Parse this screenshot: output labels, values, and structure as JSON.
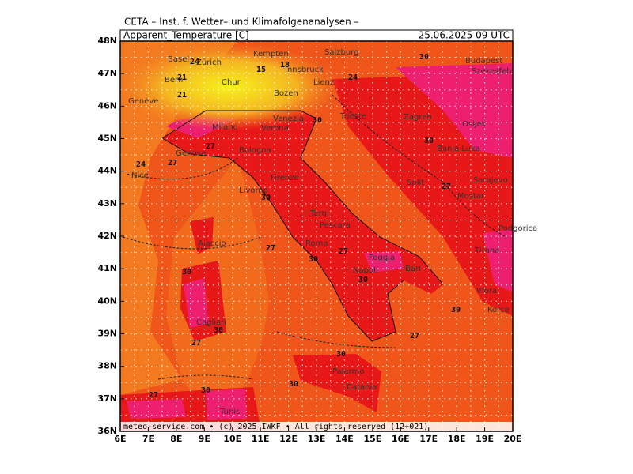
{
  "header": {
    "institute": "CETA – Inst. f. Wetter– und Klimafolgenanalysen –",
    "parameter": "Apparent_Temperature [C]",
    "valid_time": "25.06.2025 09 UTC"
  },
  "footer": "meteo-service.com • (c) 2025 IWKF • All rights reserved (12+021)",
  "lat_labels": [
    "48N",
    "47N",
    "46N",
    "45N",
    "44N",
    "43N",
    "42N",
    "41N",
    "40N",
    "39N",
    "38N",
    "37N",
    "36N"
  ],
  "lon_labels": [
    "6E",
    "7E",
    "8E",
    "9E",
    "10E",
    "11E",
    "12E",
    "13E",
    "14E",
    "15E",
    "16E",
    "17E",
    "18E",
    "19E",
    "20E"
  ],
  "cities": [
    "Basel",
    "Zürich",
    "Bern",
    "Genève",
    "Chur",
    "Kempten",
    "Innsbruck",
    "Salzburg",
    "Bozen",
    "Lienz",
    "Milano",
    "Verona",
    "Venezia",
    "Trieste",
    "Zagreb",
    "Genova",
    "Bologna",
    "Firenze",
    "Livorno",
    "Terni",
    "Pescara",
    "Roma",
    "Foggia",
    "Napoli",
    "Bari",
    "Ajaccio",
    "Cagliari",
    "Palermo",
    "Catania",
    "Tunis",
    "Nice",
    "Budapest",
    "Szekesfeh",
    "Osijek",
    "Banja Luka",
    "Split",
    "Sarajevo",
    "Mostar",
    "Podgorica",
    "Tirana",
    "Vlora",
    "Korce"
  ],
  "contour_labels": [
    "30",
    "27",
    "24",
    "21",
    "18",
    "15",
    "30",
    "27",
    "24",
    "30",
    "27",
    "30",
    "30",
    "27",
    "30",
    "30",
    "27",
    "30",
    "27",
    "30",
    "27",
    "30",
    "24",
    "21",
    "30",
    "27",
    "30"
  ]
}
